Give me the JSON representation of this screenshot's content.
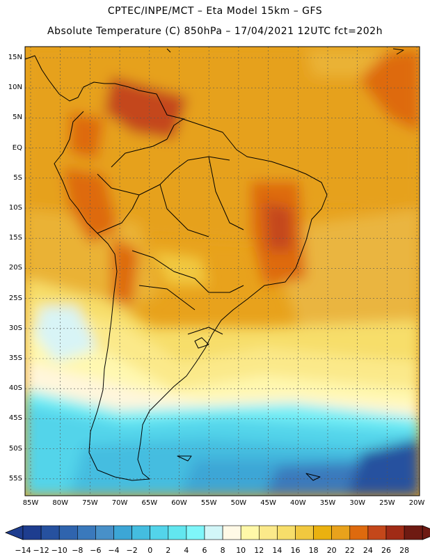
{
  "header": {
    "title_line1": "CPTEC/INPE/MCT –  Eta Model 15km – GFS",
    "title_line2": "Absolute Temperature (C) 850hPa – 17/04/2021 12UTC fct=202h"
  },
  "map": {
    "lat_labels": [
      "15N",
      "10N",
      "5N",
      "EQ",
      "5S",
      "10S",
      "15S",
      "20S",
      "25S",
      "30S",
      "35S",
      "40S",
      "45S",
      "50S",
      "55S"
    ],
    "lon_labels": [
      "85W",
      "80W",
      "75W",
      "70W",
      "65W",
      "60W",
      "55W",
      "50W",
      "45W",
      "40W",
      "35W",
      "30W",
      "25W",
      "20W"
    ]
  },
  "legend": {
    "labels": [
      "-14",
      "-12",
      "-10",
      "-8",
      "-6",
      "-4",
      "-2",
      "0",
      "2",
      "4",
      "6",
      "8",
      "10",
      "12",
      "14",
      "16",
      "18",
      "20",
      "22",
      "24",
      "26",
      "28"
    ],
    "colors": [
      "#1e3d8f",
      "#26519f",
      "#2f64ae",
      "#3a79bc",
      "#4890c8",
      "#3ca6d6",
      "#44bde0",
      "#53d4ea",
      "#62e6ef",
      "#7ff6fa",
      "#d2f6f8",
      "#fff9e6",
      "#fff8a8",
      "#fbe98a",
      "#f7de6a",
      "#f1c83f",
      "#eab10f",
      "#e8a21c",
      "#de6a0e",
      "#c4471a",
      "#a02b16",
      "#6e1a12"
    ]
  }
}
